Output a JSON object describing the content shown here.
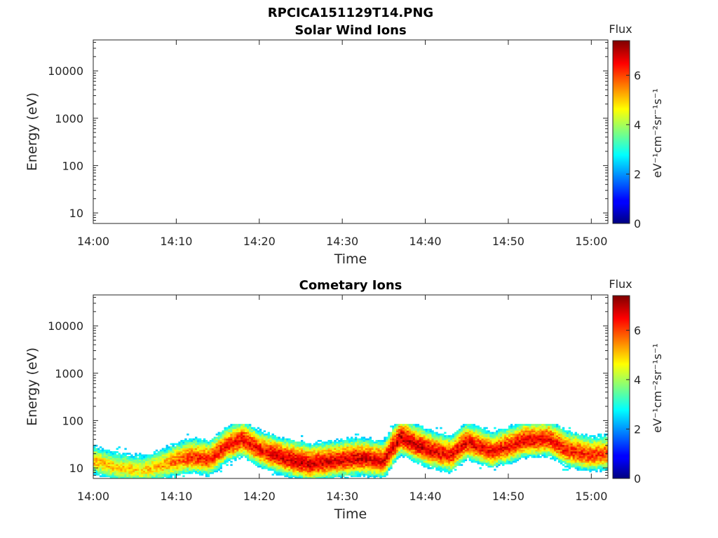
{
  "figure": {
    "title": "RPCICA151129T14.PNG"
  },
  "colorbar": {
    "label": "Flux",
    "unit_label": "eV⁻¹cm⁻²sr⁻¹s⁻¹",
    "ticks": [
      "0",
      "2",
      "4",
      "6"
    ],
    "range": [
      0,
      7.4
    ],
    "colormap": "jet"
  },
  "chart_data": [
    {
      "type": "heatmap",
      "title": "Solar Wind Ions",
      "xlabel": "Time",
      "ylabel": "Energy (eV)",
      "x_tick_labels": [
        "14:00",
        "14:10",
        "14:20",
        "14:30",
        "14:40",
        "14:50",
        "15:00"
      ],
      "y_tick_labels": [
        "10",
        "100",
        "1000",
        "10000"
      ],
      "y_scale": "log",
      "xlim": [
        "14:00",
        "15:02"
      ],
      "ylim": [
        6,
        45000
      ],
      "flux_profile": []
    },
    {
      "type": "heatmap",
      "title": "Cometary Ions",
      "xlabel": "Time",
      "ylabel": "Energy (eV)",
      "x_tick_labels": [
        "14:00",
        "14:10",
        "14:20",
        "14:30",
        "14:40",
        "14:50",
        "15:00"
      ],
      "y_tick_labels": [
        "10",
        "100",
        "1000",
        "10000"
      ],
      "y_scale": "log",
      "xlim": [
        "14:00",
        "15:02"
      ],
      "ylim": [
        6,
        45000
      ],
      "flux_profile": [
        {
          "time": "14:00",
          "peak_energy_eV": 14,
          "peak_flux": 5.2
        },
        {
          "time": "14:03",
          "peak_energy_eV": 10,
          "peak_flux": 5.0
        },
        {
          "time": "14:06",
          "peak_energy_eV": 9,
          "peak_flux": 4.9
        },
        {
          "time": "14:08",
          "peak_energy_eV": 11,
          "peak_flux": 5.3
        },
        {
          "time": "14:10",
          "peak_energy_eV": 14,
          "peak_flux": 5.8
        },
        {
          "time": "14:12",
          "peak_energy_eV": 17,
          "peak_flux": 6.2
        },
        {
          "time": "14:14",
          "peak_energy_eV": 15,
          "peak_flux": 6.3
        },
        {
          "time": "14:16",
          "peak_energy_eV": 28,
          "peak_flux": 6.4
        },
        {
          "time": "14:18",
          "peak_energy_eV": 40,
          "peak_flux": 6.6
        },
        {
          "time": "14:20",
          "peak_energy_eV": 24,
          "peak_flux": 6.5
        },
        {
          "time": "14:23",
          "peak_energy_eV": 16,
          "peak_flux": 6.8
        },
        {
          "time": "14:26",
          "peak_energy_eV": 12,
          "peak_flux": 6.9
        },
        {
          "time": "14:29",
          "peak_energy_eV": 14,
          "peak_flux": 6.7
        },
        {
          "time": "14:32",
          "peak_energy_eV": 16,
          "peak_flux": 6.8
        },
        {
          "time": "14:35",
          "peak_energy_eV": 14,
          "peak_flux": 6.6
        },
        {
          "time": "14:37",
          "peak_energy_eV": 45,
          "peak_flux": 6.9
        },
        {
          "time": "14:40",
          "peak_energy_eV": 25,
          "peak_flux": 6.8
        },
        {
          "time": "14:43",
          "peak_energy_eV": 18,
          "peak_flux": 6.5
        },
        {
          "time": "14:45",
          "peak_energy_eV": 35,
          "peak_flux": 6.7
        },
        {
          "time": "14:48",
          "peak_energy_eV": 22,
          "peak_flux": 6.4
        },
        {
          "time": "14:50",
          "peak_energy_eV": 28,
          "peak_flux": 6.5
        },
        {
          "time": "14:52",
          "peak_energy_eV": 38,
          "peak_flux": 6.6
        },
        {
          "time": "14:55",
          "peak_energy_eV": 40,
          "peak_flux": 6.5
        },
        {
          "time": "14:57",
          "peak_energy_eV": 24,
          "peak_flux": 6.4
        },
        {
          "time": "15:00",
          "peak_energy_eV": 18,
          "peak_flux": 6.2
        },
        {
          "time": "15:02",
          "peak_energy_eV": 20,
          "peak_flux": 6.1
        }
      ]
    }
  ]
}
